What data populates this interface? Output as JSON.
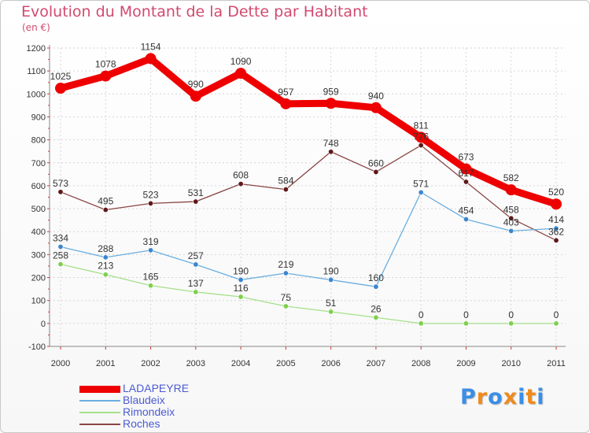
{
  "chart_data": {
    "type": "line",
    "title": "Evolution du Montant de la Dette par Habitant",
    "unit": "(en €)",
    "x": [
      "2000",
      "2001",
      "2002",
      "2003",
      "2004",
      "2005",
      "2006",
      "2007",
      "2008",
      "2009",
      "2010",
      "2011"
    ],
    "ylim": [
      -100,
      1200
    ],
    "yticks": [
      "-100",
      "0",
      "100",
      "200",
      "300",
      "400",
      "500",
      "600",
      "700",
      "800",
      "900",
      "1000",
      "1100",
      "1200"
    ],
    "grid": true,
    "legend_position": "bottom-left",
    "series": [
      {
        "name": "LADAPEYRE",
        "color": "#ee0000",
        "marker": "#ee0000",
        "width": 9,
        "values": [
          1025,
          1078,
          1154,
          990,
          1090,
          957,
          959,
          940,
          811,
          673,
          582,
          520
        ],
        "labels": [
          "1025",
          "1078",
          "1154",
          "990",
          "1090",
          "957",
          "959",
          "940",
          "811",
          "673",
          "582",
          "520"
        ]
      },
      {
        "name": "Blaudeix",
        "color": "#6aaee0",
        "marker": "#3c86cc",
        "width": 1.3,
        "values": [
          334,
          288,
          319,
          257,
          190,
          219,
          190,
          160,
          571,
          454,
          403,
          414
        ],
        "labels": [
          "334",
          "288",
          "319",
          "257",
          "190",
          "219",
          "190",
          "160",
          "571",
          "454",
          "403",
          "414"
        ]
      },
      {
        "name": "Rimondeix",
        "color": "#a6e08a",
        "marker": "#7fcf4e",
        "width": 1.3,
        "values": [
          258,
          213,
          165,
          137,
          116,
          75,
          51,
          26,
          0,
          0,
          0,
          0
        ],
        "labels": [
          "258",
          "213",
          "165",
          "137",
          "116",
          "75",
          "51",
          "26",
          "0",
          "0",
          "0",
          "0"
        ]
      },
      {
        "name": "Roches",
        "color": "#8a4646",
        "marker": "#5e1818",
        "width": 1.3,
        "values": [
          573,
          495,
          523,
          531,
          608,
          584,
          748,
          660,
          776,
          617,
          458,
          362
        ],
        "labels": [
          "573",
          "495",
          "523",
          "531",
          "608",
          "584",
          "748",
          "660",
          "776",
          "617",
          "458",
          "362"
        ]
      }
    ]
  },
  "logo": {
    "letters": [
      "P",
      "r",
      "o",
      "x",
      "i",
      "t",
      "i"
    ],
    "colors": [
      "#3a8ee6",
      "#f08a1c",
      "#3a8ee6",
      "#f08a1c",
      "#3a8ee6",
      "#f08a1c",
      "#3a8ee6"
    ]
  }
}
